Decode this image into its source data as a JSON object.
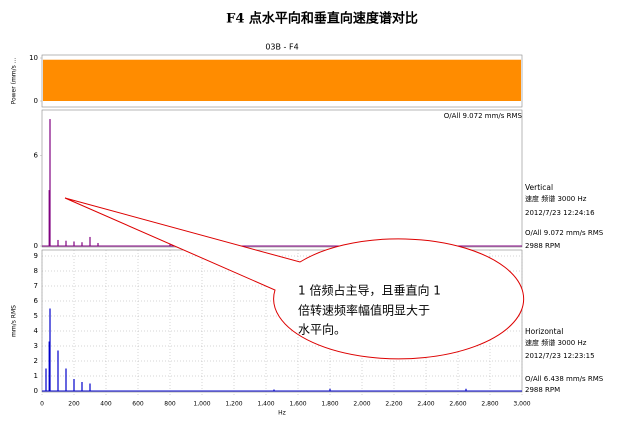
{
  "page_title": "F4 点水平向和垂直向速度谱对比",
  "annotation": {
    "lines": [
      "1 倍频占主导，且垂直向 1",
      "倍转速频率幅值明显大于",
      "水平向。"
    ]
  },
  "chart_data": [
    {
      "type": "area",
      "title": "03B - F4",
      "y_label": "Power (mm/s ...",
      "ylim": [
        0,
        10
      ],
      "yticks": [
        0,
        10
      ],
      "values": [
        9.6,
        9.6
      ],
      "color": "#ff8c00",
      "note": "O/All 9.072 mm/s RMS"
    },
    {
      "type": "stem",
      "ylim": [
        0,
        9
      ],
      "yticks": [
        0,
        6
      ],
      "xlim": [
        0,
        3000
      ],
      "grid": false,
      "color": "#800080",
      "x": [
        45,
        50,
        100,
        150,
        200,
        250,
        300,
        350,
        800
      ],
      "values": [
        3.7,
        8.4,
        0.4,
        0.35,
        0.3,
        0.25,
        0.6,
        0.2,
        0.1
      ],
      "info": [
        "Vertical",
        "速度 频谱 3000 Hz",
        "2012/7/23 12:24:16",
        "O/All 9.072 mm/s RMS",
        "2988 RPM"
      ]
    },
    {
      "type": "stem",
      "ylim": [
        0,
        9
      ],
      "yticks": [
        0,
        1,
        2,
        3,
        4,
        5,
        6,
        7,
        8,
        9
      ],
      "xlim": [
        0,
        3000
      ],
      "grid": true,
      "color": "#0000cc",
      "y_label": "mm/s RMS",
      "x_label": "Hz",
      "xticks": [
        0,
        200,
        400,
        600,
        800,
        {
          "value": 1000,
          "label": "1,000"
        },
        {
          "value": 1200,
          "label": "1,200"
        },
        {
          "value": 1400,
          "label": "1,400"
        },
        {
          "value": 1600,
          "label": "1,600"
        },
        {
          "value": 1800,
          "label": "1,800"
        },
        {
          "value": 2000,
          "label": "2,000"
        },
        {
          "value": 2200,
          "label": "2,200"
        },
        {
          "value": 2400,
          "label": "2,400"
        },
        {
          "value": 2600,
          "label": "2,600"
        },
        {
          "value": 2800,
          "label": "2,800"
        },
        {
          "value": 3000,
          "label": "3,000"
        }
      ],
      "x": [
        25,
        45,
        50,
        100,
        150,
        200,
        250,
        300,
        1450,
        1800,
        2650
      ],
      "values": [
        1.5,
        3.3,
        5.5,
        2.7,
        1.5,
        0.8,
        0.6,
        0.5,
        0.1,
        0.15,
        0.15
      ],
      "info": [
        "Horizontal",
        "速度 频谱 3000 Hz",
        "2012/7/23 12:23:15",
        "O/All 6.438 mm/s RMS",
        "2988 RPM"
      ]
    }
  ]
}
